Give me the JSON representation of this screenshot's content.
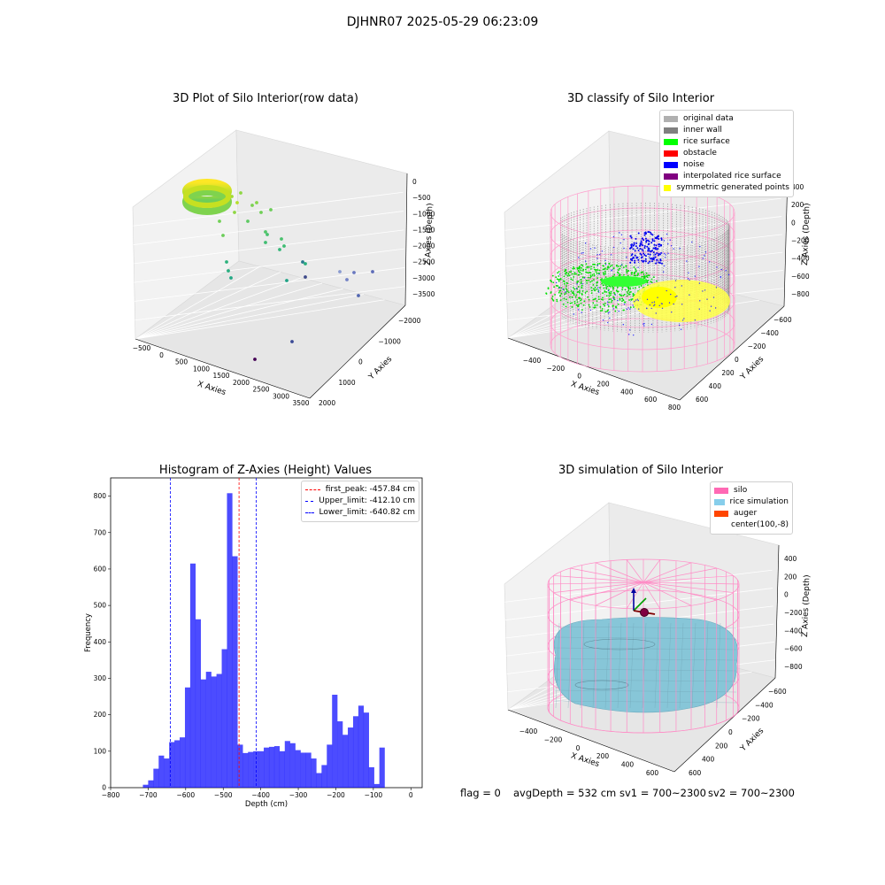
{
  "figure": {
    "suptitle": "DJHNR07 2025-05-29 06:23:09",
    "status": {
      "flag": "flag = 0",
      "avg_depth": "avgDepth = 532 cm",
      "sv1": "sv1 = 700~2300",
      "sv2": "sv2 = 700~2300"
    }
  },
  "chart_data": [
    {
      "type": "scatter",
      "title": "3D Plot of Silo Interior(row data)",
      "xlabel": "X Axies",
      "ylabel": "Y Axies",
      "zlabel": "Z Axies (Depth)",
      "x_ticks": [
        "−500",
        "0",
        "500",
        "1000",
        "1500",
        "2000",
        "2500",
        "3000",
        "3500"
      ],
      "y_ticks": [
        "−2000",
        "−1000",
        "0",
        "1000",
        "2000"
      ],
      "z_ticks": [
        "0",
        "−500",
        "−1000",
        "−1500",
        "−2000",
        "−2500",
        "−3000",
        "−3500"
      ],
      "colormap": "viridis",
      "grid": true
    },
    {
      "type": "scatter",
      "title": "3D classify of Silo Interior",
      "xlabel": "X Axies",
      "ylabel": "Y Axies",
      "zlabel": "Z Axies (Depth)",
      "x_ticks": [
        "−400",
        "−200",
        "0",
        "200",
        "400",
        "600",
        "800"
      ],
      "y_ticks": [
        "−600",
        "−400",
        "−200",
        "0",
        "200",
        "400",
        "600"
      ],
      "z_ticks": [
        "400",
        "200",
        "0",
        "−200",
        "−400",
        "−600",
        "−800"
      ],
      "legend_position": "top-right",
      "legend": [
        {
          "label": "original data",
          "color": "#b0b0b0"
        },
        {
          "label": "inner wall",
          "color": "#808080"
        },
        {
          "label": "rice surface",
          "color": "#00ff00"
        },
        {
          "label": "obstacle",
          "color": "#ff0000"
        },
        {
          "label": "noise",
          "color": "#0000ff"
        },
        {
          "label": "interpolated rice surface",
          "color": "#800080"
        },
        {
          "label": "symmetric generated points",
          "color": "#ffff00"
        }
      ],
      "grid": true
    },
    {
      "type": "bar",
      "title": "Histogram of Z-Axies (Height) Values",
      "xlabel": "Depth (cm)",
      "ylabel": "Frequency",
      "xlim": [
        -800,
        30
      ],
      "ylim": [
        0,
        850
      ],
      "x_ticks": [
        -800,
        -700,
        -600,
        -500,
        -400,
        -300,
        -200,
        -100,
        0
      ],
      "y_ticks": [
        0,
        100,
        200,
        300,
        400,
        500,
        600,
        700,
        800
      ],
      "bin_width": 14,
      "bin_start": -714,
      "counts": [
        8,
        20,
        52,
        88,
        80,
        125,
        130,
        138,
        275,
        615,
        462,
        297,
        318,
        305,
        312,
        380,
        808,
        635,
        118,
        95,
        98,
        100,
        100,
        110,
        112,
        114,
        100,
        128,
        122,
        103,
        96,
        96,
        80,
        40,
        62,
        118,
        255,
        182,
        145,
        165,
        196,
        225,
        206,
        56,
        10,
        110
      ],
      "bar_color": "#0000ff",
      "lines": [
        {
          "label": "first_peak: -457.84 cm",
          "value": -457.84,
          "color": "#ff0000"
        },
        {
          "label": "Upper_limit: -412.10 cm",
          "value": -412.1,
          "color": "#0000ff"
        },
        {
          "label": "Lower_limit: -640.82 cm",
          "value": -640.82,
          "color": "#0000ff"
        }
      ],
      "legend_position": "top-right"
    },
    {
      "type": "scatter",
      "title": "3D simulation of Silo Interior",
      "xlabel": "X Axies",
      "ylabel": "Y Axies",
      "zlabel": "Z Axies (Depth)",
      "x_ticks": [
        "−400",
        "−200",
        "0",
        "200",
        "400",
        "600"
      ],
      "y_ticks": [
        "−600",
        "−400",
        "−200",
        "0",
        "200",
        "400",
        "600"
      ],
      "z_ticks": [
        "400",
        "200",
        "0",
        "−200",
        "−400",
        "−600",
        "−800"
      ],
      "legend_position": "top-right",
      "legend": [
        {
          "label": "silo",
          "color": "#ff69b4"
        },
        {
          "label": "rice simulation",
          "color": "#87ceeb"
        },
        {
          "label": "auger",
          "color": "#ff4500"
        },
        {
          "label": "center(100,-8)",
          "color": "#ffffff"
        }
      ],
      "grid": true
    }
  ]
}
